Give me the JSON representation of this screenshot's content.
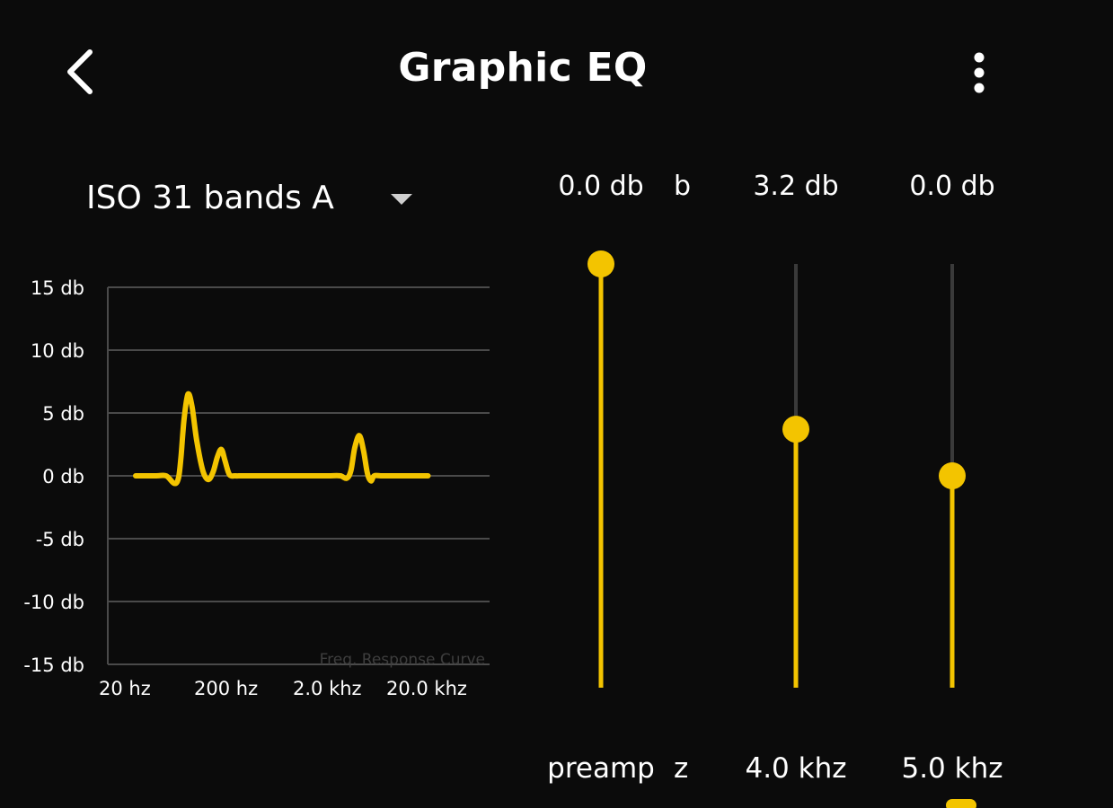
{
  "header": {
    "title": "Graphic EQ",
    "back_icon": "chevron-left-icon",
    "more_icon": "more-vertical-icon"
  },
  "preset": {
    "label": "ISO 31 bands A",
    "caret_icon": "caret-down-icon"
  },
  "colors": {
    "accent": "#f3c400",
    "background": "#0b0b0b",
    "track": "#3a3a3a",
    "grid": "#4a4a4a",
    "text": "#ffffff"
  },
  "chart_data": {
    "type": "line",
    "title": "",
    "watermark": "Freq. Response Curve",
    "xlabel": "",
    "ylabel": "",
    "ylim": [
      -15,
      15
    ],
    "x_scale": "log",
    "x_ticks": [
      "20 hz",
      "200 hz",
      "2.0 khz",
      "20.0 khz"
    ],
    "y_ticks": [
      "15 db",
      "10 db",
      "5 db",
      "0 db",
      "-5 db",
      "-10 db",
      "-15 db"
    ],
    "grid": true,
    "series": [
      {
        "x": [
          25,
          40,
          50,
          60,
          66,
          70,
          75,
          82,
          90,
          100,
          115,
          130,
          145,
          160,
          175,
          190,
          210,
          240,
          280,
          400,
          700,
          1000,
          1400,
          2000,
          2600,
          3000,
          3300,
          3600,
          4000,
          4400,
          4800,
          5200,
          5600,
          6500,
          8000,
          10000,
          14000,
          19000
        ],
        "y": [
          0,
          0,
          0,
          -0.6,
          -0.2,
          1.5,
          4.5,
          6.5,
          5.5,
          2.8,
          0.4,
          -0.3,
          0.3,
          1.5,
          2.1,
          1.2,
          0.1,
          0,
          0,
          0,
          0,
          0,
          0,
          0,
          0,
          -0.2,
          0.4,
          2.2,
          3.2,
          2.0,
          0.2,
          -0.4,
          0,
          0,
          0,
          0,
          0,
          0
        ]
      }
    ]
  },
  "sliders": [
    {
      "label": "preamp",
      "value_text": "0.0 db",
      "level": 1.0
    },
    {
      "label": "4.0 khz",
      "value_text": "3.2 db",
      "level": 0.61
    },
    {
      "label": "5.0 khz",
      "value_text": "0.0 db",
      "level": 0.5
    }
  ],
  "partial": {
    "value_fragment": "b",
    "label_fragment": "z"
  }
}
